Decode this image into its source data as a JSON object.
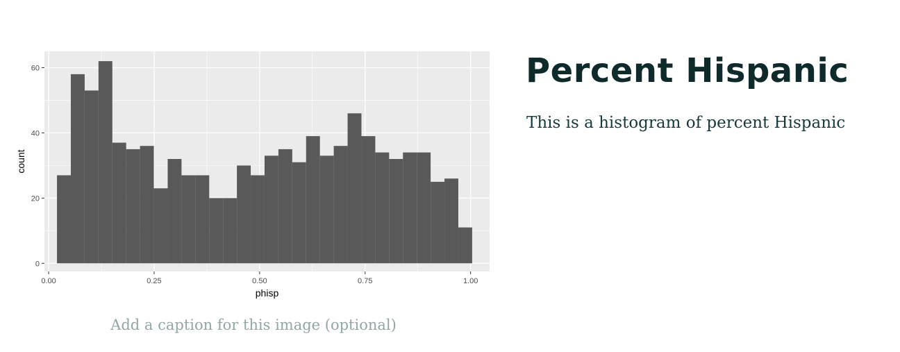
{
  "block": {
    "title": "Percent Hispanic",
    "description": "This is a histogram of percent Hispanic",
    "caption_placeholder": "Add a caption for this image (optional)"
  },
  "colors": {
    "panel_background": "#ebebeb",
    "gridline": "#ffffff",
    "bar_fill": "#595959",
    "axis_text": "#4d4d4d",
    "title_text": "#0f2a2a",
    "caption_text": "#93a6a6"
  },
  "chart_data": {
    "type": "bar",
    "title": "",
    "xlabel": "phisp",
    "ylabel": "count",
    "xlim": [
      -0.01,
      1.045
    ],
    "ylim": [
      -2.5,
      65
    ],
    "x_ticks": [
      0.0,
      0.25,
      0.5,
      0.75,
      1.0
    ],
    "x_tick_labels": [
      "0.00",
      "0.25",
      "0.50",
      "0.75",
      "1.00"
    ],
    "y_ticks": [
      0,
      20,
      40,
      60
    ],
    "y_tick_labels": [
      "0",
      "20",
      "40",
      "60"
    ],
    "grid": true,
    "legend": "none",
    "bin_width": 0.0328,
    "bin_edges": [
      0.0197,
      0.0525,
      0.0853,
      0.1181,
      0.1509,
      0.1837,
      0.2165,
      0.2493,
      0.2821,
      0.3149,
      0.3477,
      0.3805,
      0.4133,
      0.4461,
      0.4789,
      0.5117,
      0.5445,
      0.5773,
      0.6101,
      0.6429,
      0.6757,
      0.7085,
      0.7413,
      0.7741,
      0.8069,
      0.8397,
      0.8725,
      0.9053,
      0.9381,
      0.9709,
      1.0037
    ],
    "values": [
      27,
      58,
      53,
      62,
      37,
      35,
      36,
      23,
      32,
      27,
      27,
      20,
      20,
      30,
      27,
      33,
      35,
      31,
      39,
      33,
      36,
      46,
      39,
      34,
      32,
      34,
      34,
      25,
      26,
      11
    ]
  }
}
